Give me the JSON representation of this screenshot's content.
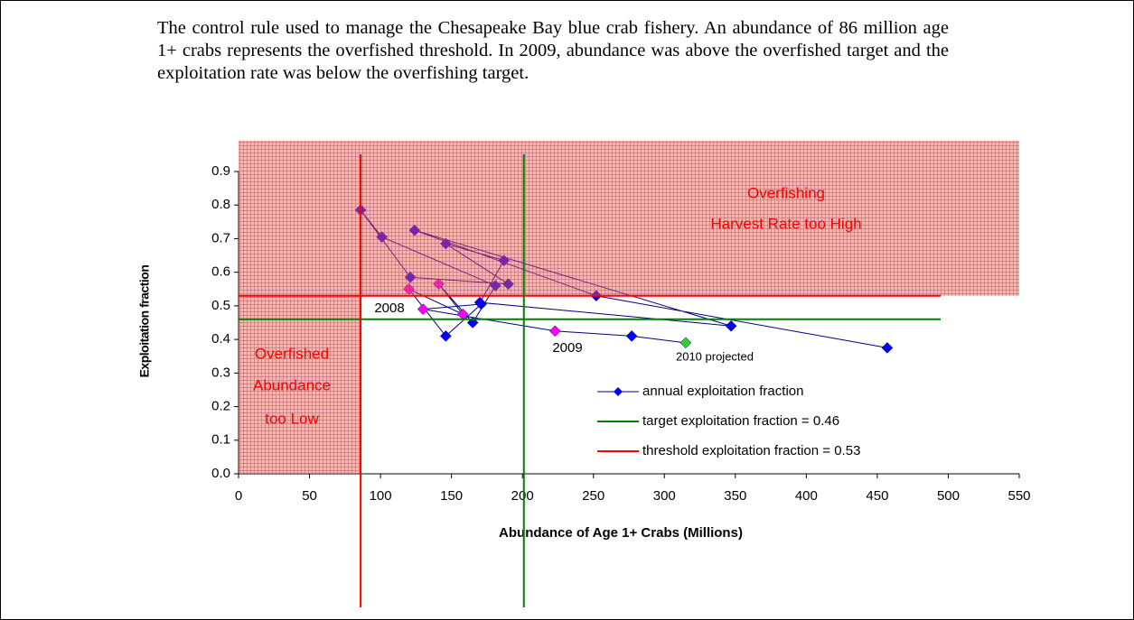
{
  "chart_data": {
    "type": "line",
    "caption": "The control rule used to manage the Chesapeake Bay blue crab fishery. An abundance of 86 million age 1+ crabs represents the overfished threshold. In 2009, abundance was above the overfished target and the exploitation rate was below the overfishing target.",
    "x_label": "Abundance of Age 1+ Crabs (Millions)",
    "y_label": "Exploitation fraction",
    "xlim": [
      0,
      550
    ],
    "xticks": [
      0,
      50,
      100,
      150,
      200,
      250,
      300,
      350,
      400,
      450,
      500,
      550
    ],
    "ylim": [
      0,
      0.9
    ],
    "yticks": [
      {
        "value": 0,
        "label": "0.0"
      },
      0.1,
      0.2,
      0.3,
      0.4,
      0.5,
      0.6,
      0.7,
      0.8,
      0.9
    ],
    "series": [
      {
        "name": "annual exploitation fraction",
        "color": "#0000ff",
        "marker_colors": [
          "#0000ff",
          "#0000ff",
          "#0000ff",
          "#0000ff",
          "#0000ff",
          "#0000ff",
          "#0000ff",
          "#0000ff",
          "#0000ff",
          "#0000ff",
          "#0000ff",
          "#0000ff",
          "#0000ff",
          "#ff00ff",
          "#ff00ff",
          "#ff00ff",
          "#0000ff",
          "#0000ff",
          "#ff00ff",
          "#ff00ff",
          "#0000ff",
          "#33cc33"
        ],
        "x": [
          457,
          252,
          124,
          347,
          170,
          187,
          146,
          190,
          121,
          86,
          101,
          181,
          165,
          141,
          158,
          120,
          146,
          171,
          130,
          223,
          277,
          315
        ],
        "values": [
          0.375,
          0.53,
          0.725,
          0.44,
          0.51,
          0.635,
          0.685,
          0.565,
          0.585,
          0.785,
          0.705,
          0.56,
          0.45,
          0.565,
          0.475,
          0.55,
          0.41,
          0.505,
          0.49,
          0.425,
          0.41,
          0.39
        ]
      }
    ],
    "reference_lines": [
      {
        "name": "target exploitation fraction = 0.46",
        "axis": "y",
        "value": 0.46,
        "color": "#008000"
      },
      {
        "name": "threshold exploitation fraction = 0.53",
        "axis": "y",
        "value": 0.53,
        "color": "#ff0000"
      },
      {
        "axis": "x",
        "value": 86,
        "color": "#ff0000"
      },
      {
        "axis": "x",
        "value": 201,
        "color": "#008000"
      }
    ],
    "region_labels": {
      "overfishing": [
        "Overfishing",
        "Harvest Rate too High"
      ],
      "overfished": [
        "Overfished",
        "Abundance",
        "too Low"
      ]
    },
    "annotations": [
      "2008",
      "2009",
      "2010 projected"
    ]
  }
}
